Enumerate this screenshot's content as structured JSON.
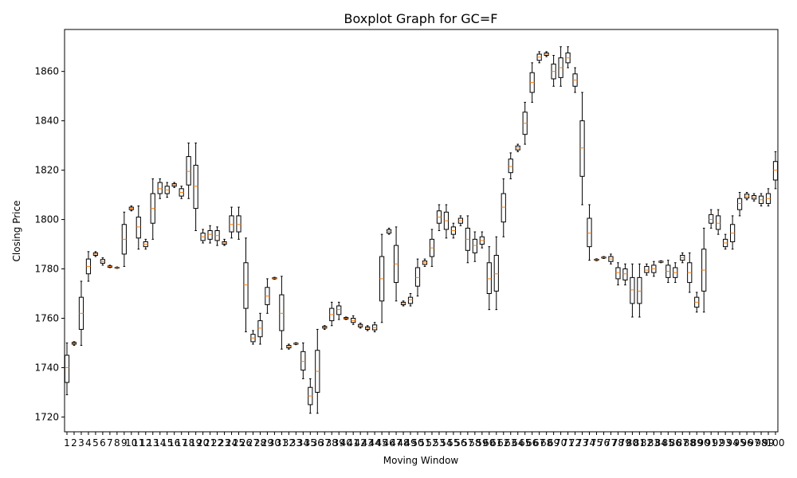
{
  "chart_data": {
    "type": "boxplot",
    "title": "Boxplot Graph for GC=F",
    "xlabel": "Moving Window",
    "ylabel": "Closing Price",
    "ylim": [
      1714,
      1877
    ],
    "yticks": [
      1720,
      1740,
      1760,
      1780,
      1800,
      1820,
      1840,
      1860
    ],
    "grid": false,
    "colors": {
      "box": "#000000",
      "median": "#ff7f0e"
    },
    "boxes": [
      {
        "x": 1,
        "whislo": 1729,
        "q1": 1734,
        "med": 1740,
        "q3": 1745,
        "whishi": 1750
      },
      {
        "x": 2,
        "whislo": 1749,
        "q1": 1749.5,
        "med": 1749.8,
        "q3": 1750.2,
        "whishi": 1750.5
      },
      {
        "x": 3,
        "whislo": 1749,
        "q1": 1755.5,
        "med": 1762,
        "q3": 1768.5,
        "whishi": 1775
      },
      {
        "x": 4,
        "whislo": 1775,
        "q1": 1778,
        "med": 1781,
        "q3": 1784,
        "whishi": 1787
      },
      {
        "x": 5,
        "whislo": 1785,
        "q1": 1785.5,
        "med": 1786,
        "q3": 1786.5,
        "whishi": 1787
      },
      {
        "x": 6,
        "whislo": 1781.5,
        "q1": 1782.3,
        "med": 1783,
        "q3": 1783.8,
        "whishi": 1784.5
      },
      {
        "x": 7,
        "whislo": 1780.5,
        "q1": 1780.7,
        "med": 1781,
        "q3": 1781.2,
        "whishi": 1781.5
      },
      {
        "x": 8,
        "whislo": 1780.2,
        "q1": 1780.4,
        "med": 1780.5,
        "q3": 1780.6,
        "whishi": 1780.8
      },
      {
        "x": 9,
        "whislo": 1781,
        "q1": 1786,
        "med": 1792,
        "q3": 1798,
        "whishi": 1803
      },
      {
        "x": 10,
        "whislo": 1803.5,
        "q1": 1804,
        "med": 1804.5,
        "q3": 1805,
        "whishi": 1805.5
      },
      {
        "x": 11,
        "whislo": 1788,
        "q1": 1792.5,
        "med": 1797,
        "q3": 1801,
        "whishi": 1805.5
      },
      {
        "x": 12,
        "whislo": 1788,
        "q1": 1789,
        "med": 1790,
        "q3": 1791,
        "whishi": 1792
      },
      {
        "x": 13,
        "whislo": 1792,
        "q1": 1798.5,
        "med": 1804.5,
        "q3": 1810.5,
        "whishi": 1816.5
      },
      {
        "x": 14,
        "whislo": 1808.5,
        "q1": 1810.5,
        "med": 1812.5,
        "q3": 1815,
        "whishi": 1816.5
      },
      {
        "x": 15,
        "whislo": 1809,
        "q1": 1810.5,
        "med": 1812,
        "q3": 1813.5,
        "whishi": 1815
      },
      {
        "x": 16,
        "whislo": 1813,
        "q1": 1813.5,
        "med": 1814,
        "q3": 1814.5,
        "whishi": 1815
      },
      {
        "x": 17,
        "whislo": 1808.5,
        "q1": 1809.5,
        "med": 1811,
        "q3": 1812.5,
        "whishi": 1813.5
      },
      {
        "x": 18,
        "whislo": 1808.5,
        "q1": 1814,
        "med": 1819.5,
        "q3": 1825.5,
        "whishi": 1831
      },
      {
        "x": 19,
        "whislo": 1795.5,
        "q1": 1804.5,
        "med": 1813.5,
        "q3": 1822,
        "whishi": 1831
      },
      {
        "x": 20,
        "whislo": 1790.5,
        "q1": 1791.5,
        "med": 1793,
        "q3": 1794.5,
        "whishi": 1796
      },
      {
        "x": 21,
        "whislo": 1790.5,
        "q1": 1792,
        "med": 1794,
        "q3": 1795.5,
        "whishi": 1797.5
      },
      {
        "x": 22,
        "whislo": 1789.5,
        "q1": 1791.5,
        "med": 1793.5,
        "q3": 1795.5,
        "whishi": 1797
      },
      {
        "x": 23,
        "whislo": 1789.5,
        "q1": 1790,
        "med": 1790.5,
        "q3": 1791,
        "whishi": 1792
      },
      {
        "x": 24,
        "whislo": 1792.5,
        "q1": 1795,
        "med": 1798,
        "q3": 1801.5,
        "whishi": 1805
      },
      {
        "x": 25,
        "whislo": 1792,
        "q1": 1795,
        "med": 1798,
        "q3": 1801.5,
        "whishi": 1805
      },
      {
        "x": 26,
        "whislo": 1754.5,
        "q1": 1764,
        "med": 1773.5,
        "q3": 1782.5,
        "whishi": 1792.5
      },
      {
        "x": 27,
        "whislo": 1749.5,
        "q1": 1750.5,
        "med": 1752,
        "q3": 1753.5,
        "whishi": 1755
      },
      {
        "x": 28,
        "whislo": 1749.5,
        "q1": 1752.5,
        "med": 1756,
        "q3": 1759,
        "whishi": 1762
      },
      {
        "x": 29,
        "whislo": 1762,
        "q1": 1765.5,
        "med": 1769,
        "q3": 1772.5,
        "whishi": 1776
      },
      {
        "x": 30,
        "whislo": 1775.8,
        "q1": 1776,
        "med": 1776.2,
        "q3": 1776.4,
        "whishi": 1776.6
      },
      {
        "x": 31,
        "whislo": 1747.5,
        "q1": 1755,
        "med": 1762,
        "q3": 1769.5,
        "whishi": 1777
      },
      {
        "x": 32,
        "whislo": 1747.5,
        "q1": 1748,
        "med": 1748.5,
        "q3": 1749,
        "whishi": 1749.5
      },
      {
        "x": 33,
        "whislo": 1749.3,
        "q1": 1749.5,
        "med": 1749.7,
        "q3": 1749.9,
        "whishi": 1750.1
      },
      {
        "x": 34,
        "whislo": 1735.5,
        "q1": 1739,
        "med": 1742.5,
        "q3": 1746.5,
        "whishi": 1750
      },
      {
        "x": 35,
        "whislo": 1721.5,
        "q1": 1725,
        "med": 1728.5,
        "q3": 1732,
        "whishi": 1735.5
      },
      {
        "x": 36,
        "whislo": 1721.5,
        "q1": 1730,
        "med": 1738.5,
        "q3": 1747,
        "whishi": 1755.5
      },
      {
        "x": 37,
        "whislo": 1755.5,
        "q1": 1756,
        "med": 1756.3,
        "q3": 1756.7,
        "whishi": 1757
      },
      {
        "x": 38,
        "whislo": 1757,
        "q1": 1759,
        "med": 1761.5,
        "q3": 1764,
        "whishi": 1766.5
      },
      {
        "x": 39,
        "whislo": 1759.5,
        "q1": 1761.5,
        "med": 1763.5,
        "q3": 1765,
        "whishi": 1766.5
      },
      {
        "x": 40,
        "whislo": 1759.5,
        "q1": 1759.7,
        "med": 1760,
        "q3": 1760.3,
        "whishi": 1760.5
      },
      {
        "x": 41,
        "whislo": 1757.5,
        "q1": 1758.3,
        "med": 1759,
        "q3": 1760,
        "whishi": 1761
      },
      {
        "x": 42,
        "whislo": 1756,
        "q1": 1756.5,
        "med": 1757,
        "q3": 1757.5,
        "whishi": 1758
      },
      {
        "x": 43,
        "whislo": 1755,
        "q1": 1755.5,
        "med": 1756,
        "q3": 1756.5,
        "whishi": 1757
      },
      {
        "x": 44,
        "whislo": 1754.5,
        "q1": 1755.3,
        "med": 1756.2,
        "q3": 1757.3,
        "whishi": 1758.3
      },
      {
        "x": 45,
        "whislo": 1758.3,
        "q1": 1767,
        "med": 1776,
        "q3": 1785,
        "whishi": 1794
      },
      {
        "x": 46,
        "whislo": 1794,
        "q1": 1794.5,
        "med": 1795.2,
        "q3": 1795.9,
        "whishi": 1796.5
      },
      {
        "x": 47,
        "whislo": 1767,
        "q1": 1774.5,
        "med": 1782,
        "q3": 1789.5,
        "whishi": 1797
      },
      {
        "x": 48,
        "whislo": 1765,
        "q1": 1765.5,
        "med": 1766,
        "q3": 1766.5,
        "whishi": 1767
      },
      {
        "x": 49,
        "whislo": 1765,
        "q1": 1766,
        "med": 1767.5,
        "q3": 1768.5,
        "whishi": 1770
      },
      {
        "x": 50,
        "whislo": 1769,
        "q1": 1773,
        "med": 1776.5,
        "q3": 1780.5,
        "whishi": 1784
      },
      {
        "x": 51,
        "whislo": 1781,
        "q1": 1781.8,
        "med": 1782.5,
        "q3": 1783.2,
        "whishi": 1784
      },
      {
        "x": 52,
        "whislo": 1781,
        "q1": 1785,
        "med": 1788.5,
        "q3": 1792,
        "whishi": 1796
      },
      {
        "x": 53,
        "whislo": 1795.5,
        "q1": 1798.5,
        "med": 1801,
        "q3": 1803.5,
        "whishi": 1806
      },
      {
        "x": 54,
        "whislo": 1792.5,
        "q1": 1796,
        "med": 1799.5,
        "q3": 1803,
        "whishi": 1806
      },
      {
        "x": 55,
        "whislo": 1792.5,
        "q1": 1794,
        "med": 1795.5,
        "q3": 1797,
        "whishi": 1798.5
      },
      {
        "x": 56,
        "whislo": 1797.5,
        "q1": 1798.5,
        "med": 1799.5,
        "q3": 1800.5,
        "whishi": 1801.5
      },
      {
        "x": 57,
        "whislo": 1782.5,
        "q1": 1787.5,
        "med": 1792,
        "q3": 1796.5,
        "whishi": 1801.5
      },
      {
        "x": 58,
        "whislo": 1783,
        "q1": 1786.5,
        "med": 1789.5,
        "q3": 1792,
        "whishi": 1795
      },
      {
        "x": 59,
        "whislo": 1788.5,
        "q1": 1790,
        "med": 1791.5,
        "q3": 1793,
        "whishi": 1795
      },
      {
        "x": 60,
        "whislo": 1763.5,
        "q1": 1770,
        "med": 1776,
        "q3": 1782.5,
        "whishi": 1789
      },
      {
        "x": 61,
        "whislo": 1763.5,
        "q1": 1771,
        "med": 1778,
        "q3": 1785.5,
        "whishi": 1793
      },
      {
        "x": 62,
        "whislo": 1793,
        "q1": 1799,
        "med": 1805,
        "q3": 1810.5,
        "whishi": 1816.5
      },
      {
        "x": 63,
        "whislo": 1816.5,
        "q1": 1819,
        "med": 1821.5,
        "q3": 1824.5,
        "whishi": 1827
      },
      {
        "x": 64,
        "whislo": 1827.5,
        "q1": 1828.2,
        "med": 1829,
        "q3": 1829.8,
        "whishi": 1830.5
      },
      {
        "x": 65,
        "whislo": 1830.5,
        "q1": 1834.5,
        "med": 1839,
        "q3": 1843.5,
        "whishi": 1847.5
      },
      {
        "x": 66,
        "whislo": 1847.5,
        "q1": 1851.5,
        "med": 1855.5,
        "q3": 1859.5,
        "whishi": 1863.5
      },
      {
        "x": 67,
        "whislo": 1863.5,
        "q1": 1864.5,
        "med": 1865.8,
        "q3": 1867,
        "whishi": 1868
      },
      {
        "x": 68,
        "whislo": 1866,
        "q1": 1866.5,
        "med": 1867,
        "q3": 1867.5,
        "whishi": 1868
      },
      {
        "x": 69,
        "whislo": 1854,
        "q1": 1857,
        "med": 1860,
        "q3": 1863,
        "whishi": 1866.5
      },
      {
        "x": 70,
        "whislo": 1854,
        "q1": 1857.5,
        "med": 1861.5,
        "q3": 1865.5,
        "whishi": 1870
      },
      {
        "x": 71,
        "whislo": 1861.5,
        "q1": 1863.5,
        "med": 1865.5,
        "q3": 1867.5,
        "whishi": 1870
      },
      {
        "x": 72,
        "whislo": 1851.5,
        "q1": 1854,
        "med": 1856.5,
        "q3": 1859,
        "whishi": 1861.5
      },
      {
        "x": 73,
        "whislo": 1806,
        "q1": 1817.5,
        "med": 1829,
        "q3": 1840,
        "whishi": 1851.5
      },
      {
        "x": 74,
        "whislo": 1783.5,
        "q1": 1789,
        "med": 1794.5,
        "q3": 1800.5,
        "whishi": 1806
      },
      {
        "x": 75,
        "whislo": 1783.3,
        "q1": 1783.5,
        "med": 1783.7,
        "q3": 1783.9,
        "whishi": 1784.1
      },
      {
        "x": 76,
        "whislo": 1784.2,
        "q1": 1784.4,
        "med": 1784.6,
        "q3": 1784.8,
        "whishi": 1785
      },
      {
        "x": 77,
        "whislo": 1782,
        "q1": 1783,
        "med": 1784,
        "q3": 1785,
        "whishi": 1786
      },
      {
        "x": 78,
        "whislo": 1773.5,
        "q1": 1776,
        "med": 1778.5,
        "q3": 1780.5,
        "whishi": 1782.5
      },
      {
        "x": 79,
        "whislo": 1773.5,
        "q1": 1775.5,
        "med": 1778,
        "q3": 1780,
        "whishi": 1782
      },
      {
        "x": 80,
        "whislo": 1760.5,
        "q1": 1766,
        "med": 1771.5,
        "q3": 1776.5,
        "whishi": 1782
      },
      {
        "x": 81,
        "whislo": 1760.5,
        "q1": 1766,
        "med": 1771,
        "q3": 1776.5,
        "whishi": 1782
      },
      {
        "x": 82,
        "whislo": 1777.5,
        "q1": 1778.5,
        "med": 1779.5,
        "q3": 1781,
        "whishi": 1782
      },
      {
        "x": 83,
        "whislo": 1777,
        "q1": 1778.5,
        "med": 1780,
        "q3": 1781.5,
        "whishi": 1783
      },
      {
        "x": 84,
        "whislo": 1782.5,
        "q1": 1782.7,
        "med": 1782.9,
        "q3": 1783.1,
        "whishi": 1783.3
      },
      {
        "x": 85,
        "whislo": 1774.5,
        "q1": 1776.5,
        "med": 1779,
        "q3": 1781.5,
        "whishi": 1783.5
      },
      {
        "x": 86,
        "whislo": 1774.5,
        "q1": 1776.5,
        "med": 1778.5,
        "q3": 1780.5,
        "whishi": 1782.5
      },
      {
        "x": 87,
        "whislo": 1782.5,
        "q1": 1783.5,
        "med": 1784.5,
        "q3": 1785.5,
        "whishi": 1786.5
      },
      {
        "x": 88,
        "whislo": 1770.5,
        "q1": 1774.5,
        "med": 1778.5,
        "q3": 1782.5,
        "whishi": 1786.5
      },
      {
        "x": 89,
        "whislo": 1762.5,
        "q1": 1764.5,
        "med": 1766.5,
        "q3": 1768.5,
        "whishi": 1770.5
      },
      {
        "x": 90,
        "whislo": 1762.5,
        "q1": 1771,
        "med": 1779.5,
        "q3": 1788,
        "whishi": 1796.5
      },
      {
        "x": 91,
        "whislo": 1796.5,
        "q1": 1798.5,
        "med": 1800,
        "q3": 1802,
        "whishi": 1804
      },
      {
        "x": 92,
        "whislo": 1794,
        "q1": 1796,
        "med": 1798.5,
        "q3": 1801.5,
        "whishi": 1804
      },
      {
        "x": 93,
        "whislo": 1788,
        "q1": 1789,
        "med": 1790.5,
        "q3": 1792,
        "whishi": 1794
      },
      {
        "x": 94,
        "whislo": 1788,
        "q1": 1791,
        "med": 1794.5,
        "q3": 1798,
        "whishi": 1801.5
      },
      {
        "x": 95,
        "whislo": 1801.5,
        "q1": 1804,
        "med": 1806.5,
        "q3": 1808.5,
        "whishi": 1811
      },
      {
        "x": 96,
        "whislo": 1808,
        "q1": 1808.7,
        "med": 1809.5,
        "q3": 1810.3,
        "whishi": 1811
      },
      {
        "x": 97,
        "whislo": 1807.5,
        "q1": 1808.3,
        "med": 1809,
        "q3": 1809.7,
        "whishi": 1810.5
      },
      {
        "x": 98,
        "whislo": 1805.5,
        "q1": 1806.5,
        "med": 1808,
        "q3": 1809.5,
        "whishi": 1810.5
      },
      {
        "x": 99,
        "whislo": 1805.5,
        "q1": 1806.5,
        "med": 1808.5,
        "q3": 1810.5,
        "whishi": 1812.5
      },
      {
        "x": 100,
        "whislo": 1812.5,
        "q1": 1816,
        "med": 1820,
        "q3": 1823.5,
        "whishi": 1827.5
      }
    ]
  }
}
